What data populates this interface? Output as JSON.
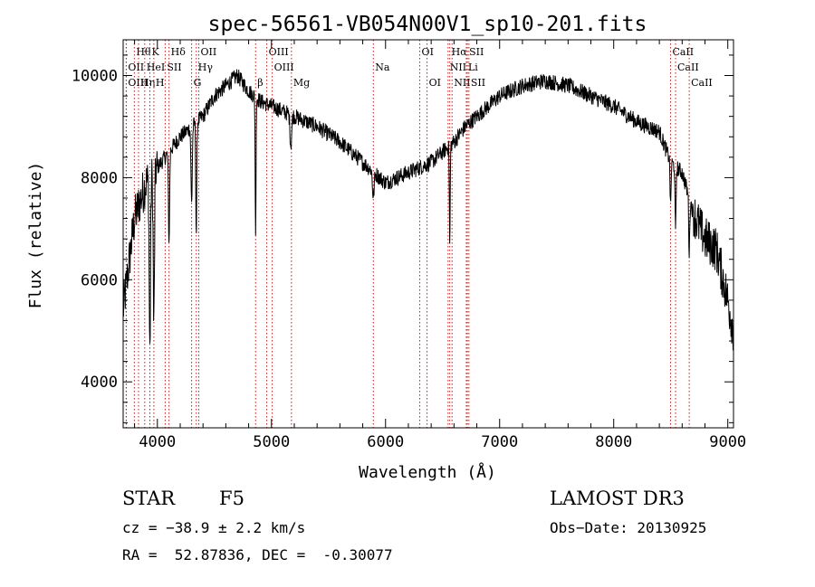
{
  "chart_data": {
    "type": "line",
    "title": "spec-56561-VB054N00V1_sp10-201.fits",
    "xlabel": "Wavelength (Å)",
    "ylabel": "Flux (relative)",
    "xlim": [
      3700,
      9050
    ],
    "ylim": [
      3100,
      10700
    ],
    "xticks": [
      4000,
      5000,
      6000,
      7000,
      8000,
      9000
    ],
    "yticks": [
      4000,
      6000,
      8000,
      10000
    ],
    "grid": false,
    "line_color": "#000000",
    "marker_color": "#b22222",
    "series": [
      {
        "name": "flux",
        "continuum": {
          "x": [
            3700,
            3800,
            3900,
            4000,
            4100,
            4200,
            4300,
            4400,
            4500,
            4600,
            4700,
            4800,
            4900,
            5000,
            5200,
            5400,
            5600,
            5800,
            6000,
            6200,
            6400,
            6500,
            6600,
            6700,
            6800,
            7000,
            7200,
            7400,
            7600,
            7800,
            8000,
            8200,
            8400,
            8500,
            8600,
            8700,
            8800,
            8900,
            9000,
            9050
          ],
          "y": [
            5400,
            7200,
            7900,
            8200,
            8500,
            8800,
            9000,
            9200,
            9600,
            9800,
            10000,
            9700,
            9500,
            9400,
            9200,
            9000,
            8700,
            8300,
            7900,
            8100,
            8300,
            8500,
            8700,
            9000,
            9200,
            9600,
            9800,
            9900,
            9800,
            9600,
            9400,
            9100,
            8900,
            8300,
            8100,
            7300,
            6800,
            6600,
            5600,
            5000
          ]
        },
        "absorption": [
          {
            "x": 3934,
            "depth": 3400,
            "width": 8
          },
          {
            "x": 3969,
            "depth": 3000,
            "width": 8
          },
          {
            "x": 4102,
            "depth": 1800,
            "width": 7
          },
          {
            "x": 4300,
            "depth": 1500,
            "width": 8
          },
          {
            "x": 4341,
            "depth": 2200,
            "width": 6
          },
          {
            "x": 4861,
            "depth": 2800,
            "width": 5
          },
          {
            "x": 5170,
            "depth": 600,
            "width": 10
          },
          {
            "x": 5893,
            "depth": 500,
            "width": 10
          },
          {
            "x": 6563,
            "depth": 2000,
            "width": 5
          },
          {
            "x": 8498,
            "depth": 900,
            "width": 6
          },
          {
            "x": 8542,
            "depth": 1300,
            "width": 6
          },
          {
            "x": 8662,
            "depth": 1100,
            "width": 6
          }
        ]
      }
    ],
    "line_markers": [
      {
        "name": "Hθ",
        "x": 3798,
        "row": 0
      },
      {
        "name": "K",
        "x": 3934,
        "row": 0
      },
      {
        "name": "Hδ",
        "x": 4102,
        "row": 0
      },
      {
        "name": "OII",
        "x": 4363,
        "row": 0
      },
      {
        "name": "OIII",
        "x": 4959,
        "row": 0
      },
      {
        "name": "OI",
        "x": 6300,
        "row": 0
      },
      {
        "name": "Hα",
        "x": 6563,
        "row": 0
      },
      {
        "name": "SII",
        "x": 6717,
        "row": 0
      },
      {
        "name": "CaII",
        "x": 8498,
        "row": 0
      },
      {
        "name": "OII",
        "x": 3727,
        "row": 1
      },
      {
        "name": "HeI",
        "x": 3889,
        "row": 1
      },
      {
        "name": "SII",
        "x": 4068,
        "row": 1
      },
      {
        "name": "Hγ",
        "x": 4341,
        "row": 1
      },
      {
        "name": "OIII",
        "x": 5007,
        "row": 1
      },
      {
        "name": "Na",
        "x": 5893,
        "row": 1
      },
      {
        "name": "NII",
        "x": 6548,
        "row": 1
      },
      {
        "name": "Li",
        "x": 6708,
        "row": 1
      },
      {
        "name": "CaII",
        "x": 8542,
        "row": 1
      },
      {
        "name": "OIII",
        "x": 3727,
        "row": 2
      },
      {
        "name": "Hη",
        "x": 3835,
        "row": 2
      },
      {
        "name": "H",
        "x": 3969,
        "row": 2
      },
      {
        "name": "G",
        "x": 4300,
        "row": 2
      },
      {
        "name": "β",
        "x": 4861,
        "row": 2
      },
      {
        "name": "Mg",
        "x": 5175,
        "row": 2
      },
      {
        "name": "OI",
        "x": 6364,
        "row": 2
      },
      {
        "name": "NII",
        "x": 6583,
        "row": 2
      },
      {
        "name": "SII",
        "x": 6731,
        "row": 2
      },
      {
        "name": "CaII",
        "x": 8662,
        "row": 2
      }
    ]
  },
  "info": {
    "object_class": "STAR",
    "subclass": "F5",
    "survey": "LAMOST DR3",
    "cz": "cz = −38.9 ± 2.2 km/s",
    "obs_date": "Obs−Date: 20130925",
    "coords": "RA =  52.87836, DEC =  -0.30077"
  }
}
